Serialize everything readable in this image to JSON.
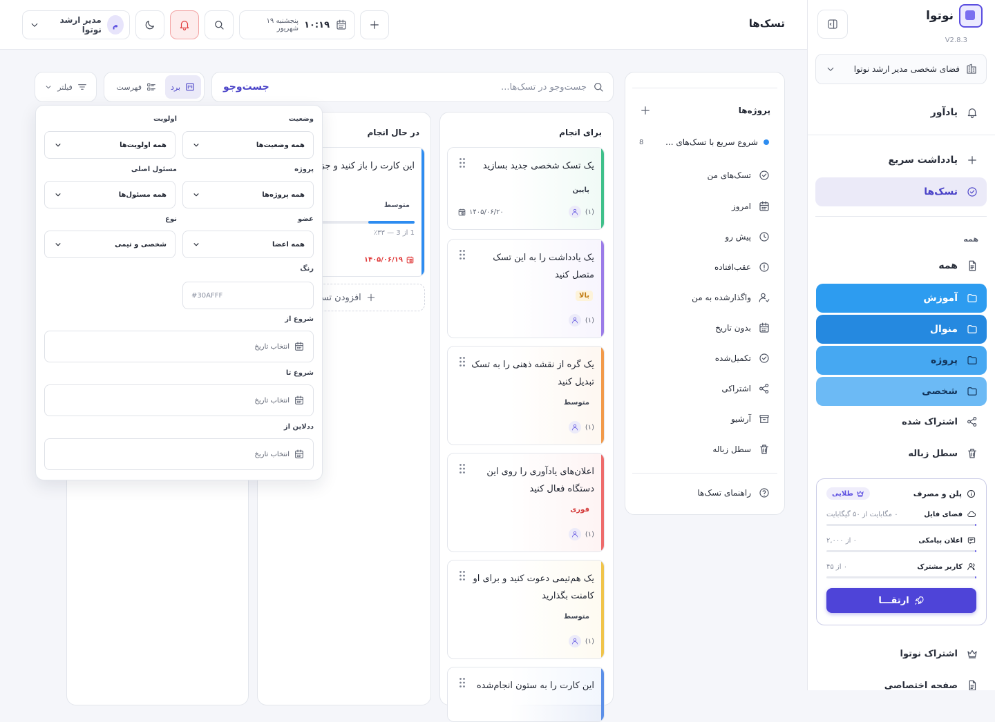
{
  "app": {
    "name": "نوتوا",
    "version": "V2.8.3"
  },
  "workspace": {
    "label": "فضای شخصی مدیر ارشد نوتوا"
  },
  "sidebar": {
    "reminders": "یادآور",
    "quick_note": "یادداشت سریع",
    "tasks": "تسک‌ها",
    "section_all": "همه",
    "all": "همه",
    "folders": [
      {
        "label": "آموزش",
        "color": "#2d9cf0"
      },
      {
        "label": "منوال",
        "color": "#2589e0"
      },
      {
        "label": "پروژه",
        "color": "#46a8f2"
      },
      {
        "label": "شخصی",
        "color": "#6cbaf5"
      }
    ],
    "shared": "اشتراک شده",
    "trash": "سطل زباله",
    "plan": {
      "title": "پلن و مصرف",
      "badge": "طلایی",
      "rows": [
        {
          "label": "فضای فایل",
          "value": "۰ مگابایت از ۵۰ گیگابایت",
          "fraction": 0
        },
        {
          "label": "اعلان پیامکی",
          "value": "۰ از ۲,۰۰۰",
          "fraction": 0
        },
        {
          "label": "کاربر مشترک",
          "value": "۰ از ۴۵",
          "fraction": 0
        }
      ],
      "upgrade": "ارتقـــا"
    },
    "subscription": "اشتراک نوتوا",
    "private_page": "صفحه اختصاصی"
  },
  "header": {
    "title": "تسک‌ها",
    "time": "۱۰:۱۹",
    "date": "پنجشنبه ۱۹ شهریور",
    "user_name": "مدیر ارشد نوتوا",
    "avatar_letter": "م"
  },
  "projects_panel": {
    "heading": "پروژه‌ها",
    "project": {
      "name": "شروع سریع با تسک‌های ...",
      "count": "8",
      "color": "#2d8cf0"
    },
    "items": [
      "تسک‌های من",
      "امروز",
      "پیش رو",
      "عقب‌افتاده",
      "واگذارشده به من",
      "بدون تاریخ",
      "تکمیل‌شده",
      "اشتراکی",
      "آرشیو",
      "سطل زباله"
    ],
    "guide": "راهنمای تسک‌ها"
  },
  "toolbar": {
    "search_placeholder": "جست‌وجو در تسک‌ها...",
    "search_button": "جست‌وجو",
    "view_board": "برد",
    "view_list": "فهرست",
    "filter": "فیلتر"
  },
  "board": {
    "todo_title": "برای انجام",
    "inprogress_title": "در حال انجام",
    "todo_cards": [
      {
        "text": "یک تسک شخصی جدید بسازید",
        "priority": "پایین",
        "date": "۱۴۰۵/۰۶/۲۰",
        "assignees": "(۱)",
        "color": "#3fc08a"
      },
      {
        "text": "یک یادداشت را به این تسک متصل کنید",
        "priority": "بالا",
        "assignees": "(۱)",
        "color": "#9b7be8"
      },
      {
        "text": "یک گره از نقشه ذهنی را به تسک تبدیل کنید",
        "priority": "متوسط",
        "assignees": "(۱)",
        "color": "#f29a4a"
      },
      {
        "text": "اعلان‌های یادآوری را روی این دستگاه فعال کنید",
        "priority": "فوری",
        "assignees": "(۱)",
        "color": "#ee6b6b"
      },
      {
        "text": "یک هم‌تیمی دعوت کنید و برای او کامنت بگذارید",
        "priority": "متوسط",
        "assignees": "(۱)",
        "color": "#f0c44a"
      },
      {
        "text": "این کارت را به ستون انجام‌شده",
        "color": "#5b8fe8"
      }
    ],
    "inprogress_card": {
      "text": "این کارت را باز کنید و جزئیات را ببینید",
      "priority": "متوسط",
      "progress_text": "1 از 3 — ۳۳٪",
      "progress": 0.33,
      "date": "۱۴۰۵/۰۶/۱۹",
      "color": "#2d8cf0"
    },
    "add_task": "افزودن تسک"
  },
  "filter_panel": {
    "status_label": "وضعیت",
    "status_value": "همه وضعیت‌ها",
    "priority_label": "اولویت",
    "priority_value": "همه اولویت‌ها",
    "project_label": "پروژه",
    "project_value": "همه پروژه‌ها",
    "owner_label": "مسئول اصلی",
    "owner_value": "همه مسئول‌ها",
    "member_label": "عضو",
    "member_value": "همه اعضا",
    "type_label": "نوع",
    "type_value": "شخصی و تیمی",
    "color_label": "رنگ",
    "color_value": "#30AFFF",
    "start_from_label": "شروع از",
    "start_to_label": "شروع تا",
    "deadline_from_label": "ددلاین از",
    "date_placeholder": "انتخاب تاریخ"
  }
}
